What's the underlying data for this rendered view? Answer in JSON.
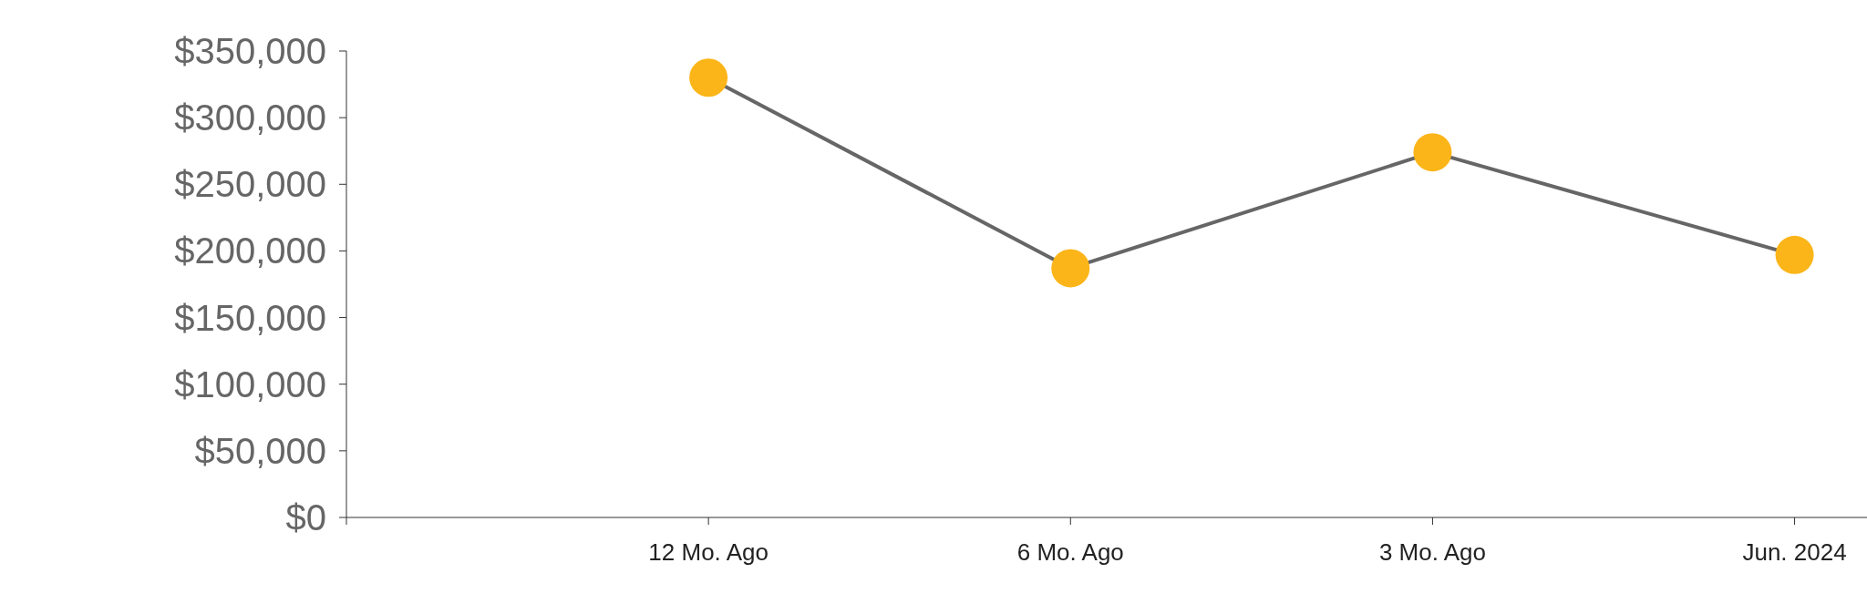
{
  "chart_data": {
    "type": "line",
    "categories": [
      "12 Mo. Ago",
      "6 Mo. Ago",
      "3 Mo. Ago",
      "Jun. 2024"
    ],
    "series": [
      {
        "color": "#666666",
        "colors": [
          "#fbb519",
          "#fbb519",
          "#fbb519",
          "#fbb519"
        ],
        "values": [
          330000,
          187000,
          274000,
          197000
        ]
      }
    ],
    "marker": "circle",
    "ylim": [
      0,
      350000
    ],
    "yticks": [
      {
        "value": 0,
        "label": "$0"
      },
      {
        "value": 50000,
        "label": "$50,000"
      },
      {
        "value": 100000,
        "label": "$100,000"
      },
      {
        "value": 150000,
        "label": "$150,000"
      },
      {
        "value": 200000,
        "label": "$200,000"
      },
      {
        "value": 250000,
        "label": "$250,000"
      },
      {
        "value": 300000,
        "label": "$300,000"
      },
      {
        "value": 350000,
        "label": "$350,000"
      }
    ],
    "grid": false
  }
}
